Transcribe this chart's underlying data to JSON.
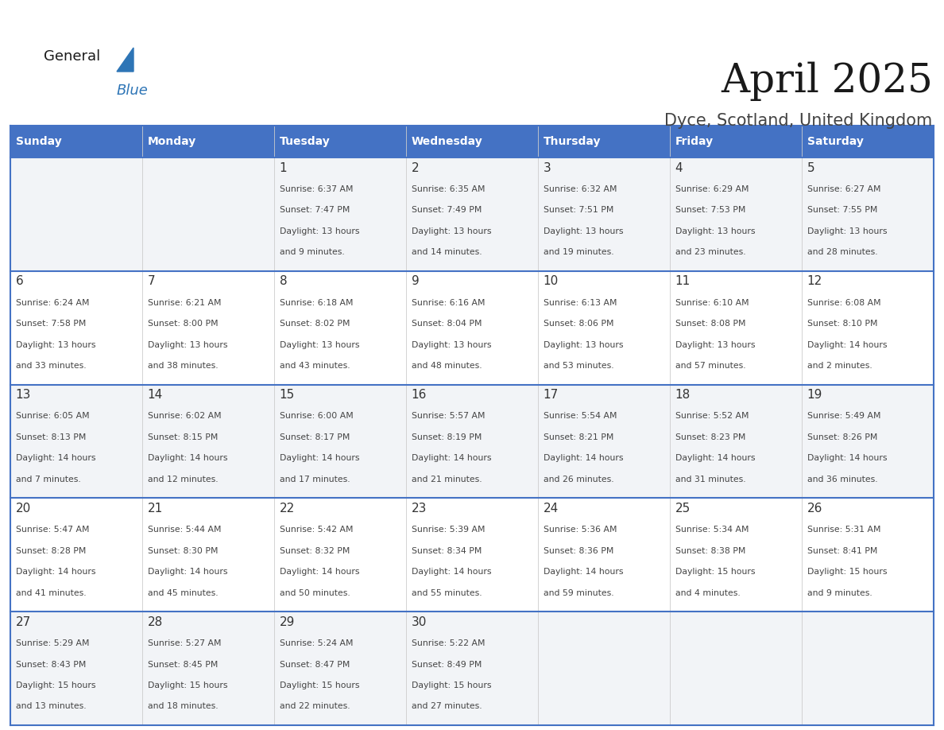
{
  "title": "April 2025",
  "subtitle": "Dyce, Scotland, United Kingdom",
  "header_bg": "#4472C4",
  "header_text_color": "#FFFFFF",
  "header_font_size": 11,
  "title_font_size": 36,
  "subtitle_font_size": 15,
  "day_headers": [
    "Sunday",
    "Monday",
    "Tuesday",
    "Wednesday",
    "Thursday",
    "Friday",
    "Saturday"
  ],
  "weeks": [
    [
      {
        "day": "",
        "sunrise": "",
        "sunset": "",
        "daylight": ""
      },
      {
        "day": "",
        "sunrise": "",
        "sunset": "",
        "daylight": ""
      },
      {
        "day": "1",
        "sunrise": "6:37 AM",
        "sunset": "7:47 PM",
        "daylight": "13 hours\nand 9 minutes."
      },
      {
        "day": "2",
        "sunrise": "6:35 AM",
        "sunset": "7:49 PM",
        "daylight": "13 hours\nand 14 minutes."
      },
      {
        "day": "3",
        "sunrise": "6:32 AM",
        "sunset": "7:51 PM",
        "daylight": "13 hours\nand 19 minutes."
      },
      {
        "day": "4",
        "sunrise": "6:29 AM",
        "sunset": "7:53 PM",
        "daylight": "13 hours\nand 23 minutes."
      },
      {
        "day": "5",
        "sunrise": "6:27 AM",
        "sunset": "7:55 PM",
        "daylight": "13 hours\nand 28 minutes."
      }
    ],
    [
      {
        "day": "6",
        "sunrise": "6:24 AM",
        "sunset": "7:58 PM",
        "daylight": "13 hours\nand 33 minutes."
      },
      {
        "day": "7",
        "sunrise": "6:21 AM",
        "sunset": "8:00 PM",
        "daylight": "13 hours\nand 38 minutes."
      },
      {
        "day": "8",
        "sunrise": "6:18 AM",
        "sunset": "8:02 PM",
        "daylight": "13 hours\nand 43 minutes."
      },
      {
        "day": "9",
        "sunrise": "6:16 AM",
        "sunset": "8:04 PM",
        "daylight": "13 hours\nand 48 minutes."
      },
      {
        "day": "10",
        "sunrise": "6:13 AM",
        "sunset": "8:06 PM",
        "daylight": "13 hours\nand 53 minutes."
      },
      {
        "day": "11",
        "sunrise": "6:10 AM",
        "sunset": "8:08 PM",
        "daylight": "13 hours\nand 57 minutes."
      },
      {
        "day": "12",
        "sunrise": "6:08 AM",
        "sunset": "8:10 PM",
        "daylight": "14 hours\nand 2 minutes."
      }
    ],
    [
      {
        "day": "13",
        "sunrise": "6:05 AM",
        "sunset": "8:13 PM",
        "daylight": "14 hours\nand 7 minutes."
      },
      {
        "day": "14",
        "sunrise": "6:02 AM",
        "sunset": "8:15 PM",
        "daylight": "14 hours\nand 12 minutes."
      },
      {
        "day": "15",
        "sunrise": "6:00 AM",
        "sunset": "8:17 PM",
        "daylight": "14 hours\nand 17 minutes."
      },
      {
        "day": "16",
        "sunrise": "5:57 AM",
        "sunset": "8:19 PM",
        "daylight": "14 hours\nand 21 minutes."
      },
      {
        "day": "17",
        "sunrise": "5:54 AM",
        "sunset": "8:21 PM",
        "daylight": "14 hours\nand 26 minutes."
      },
      {
        "day": "18",
        "sunrise": "5:52 AM",
        "sunset": "8:23 PM",
        "daylight": "14 hours\nand 31 minutes."
      },
      {
        "day": "19",
        "sunrise": "5:49 AM",
        "sunset": "8:26 PM",
        "daylight": "14 hours\nand 36 minutes."
      }
    ],
    [
      {
        "day": "20",
        "sunrise": "5:47 AM",
        "sunset": "8:28 PM",
        "daylight": "14 hours\nand 41 minutes."
      },
      {
        "day": "21",
        "sunrise": "5:44 AM",
        "sunset": "8:30 PM",
        "daylight": "14 hours\nand 45 minutes."
      },
      {
        "day": "22",
        "sunrise": "5:42 AM",
        "sunset": "8:32 PM",
        "daylight": "14 hours\nand 50 minutes."
      },
      {
        "day": "23",
        "sunrise": "5:39 AM",
        "sunset": "8:34 PM",
        "daylight": "14 hours\nand 55 minutes."
      },
      {
        "day": "24",
        "sunrise": "5:36 AM",
        "sunset": "8:36 PM",
        "daylight": "14 hours\nand 59 minutes."
      },
      {
        "day": "25",
        "sunrise": "5:34 AM",
        "sunset": "8:38 PM",
        "daylight": "15 hours\nand 4 minutes."
      },
      {
        "day": "26",
        "sunrise": "5:31 AM",
        "sunset": "8:41 PM",
        "daylight": "15 hours\nand 9 minutes."
      }
    ],
    [
      {
        "day": "27",
        "sunrise": "5:29 AM",
        "sunset": "8:43 PM",
        "daylight": "15 hours\nand 13 minutes."
      },
      {
        "day": "28",
        "sunrise": "5:27 AM",
        "sunset": "8:45 PM",
        "daylight": "15 hours\nand 18 minutes."
      },
      {
        "day": "29",
        "sunrise": "5:24 AM",
        "sunset": "8:47 PM",
        "daylight": "15 hours\nand 22 minutes."
      },
      {
        "day": "30",
        "sunrise": "5:22 AM",
        "sunset": "8:49 PM",
        "daylight": "15 hours\nand 27 minutes."
      },
      {
        "day": "",
        "sunrise": "",
        "sunset": "",
        "daylight": ""
      },
      {
        "day": "",
        "sunrise": "",
        "sunset": "",
        "daylight": ""
      },
      {
        "day": "",
        "sunrise": "",
        "sunset": "",
        "daylight": ""
      }
    ]
  ],
  "cell_bg_white": "#FFFFFF",
  "cell_bg_gray": "#F2F4F7",
  "cell_border_color": "#4472C4",
  "text_color_day": "#333333",
  "text_color_info": "#444444",
  "logo_general_color": "#1a1a1a",
  "logo_blue_color": "#2E75B6"
}
